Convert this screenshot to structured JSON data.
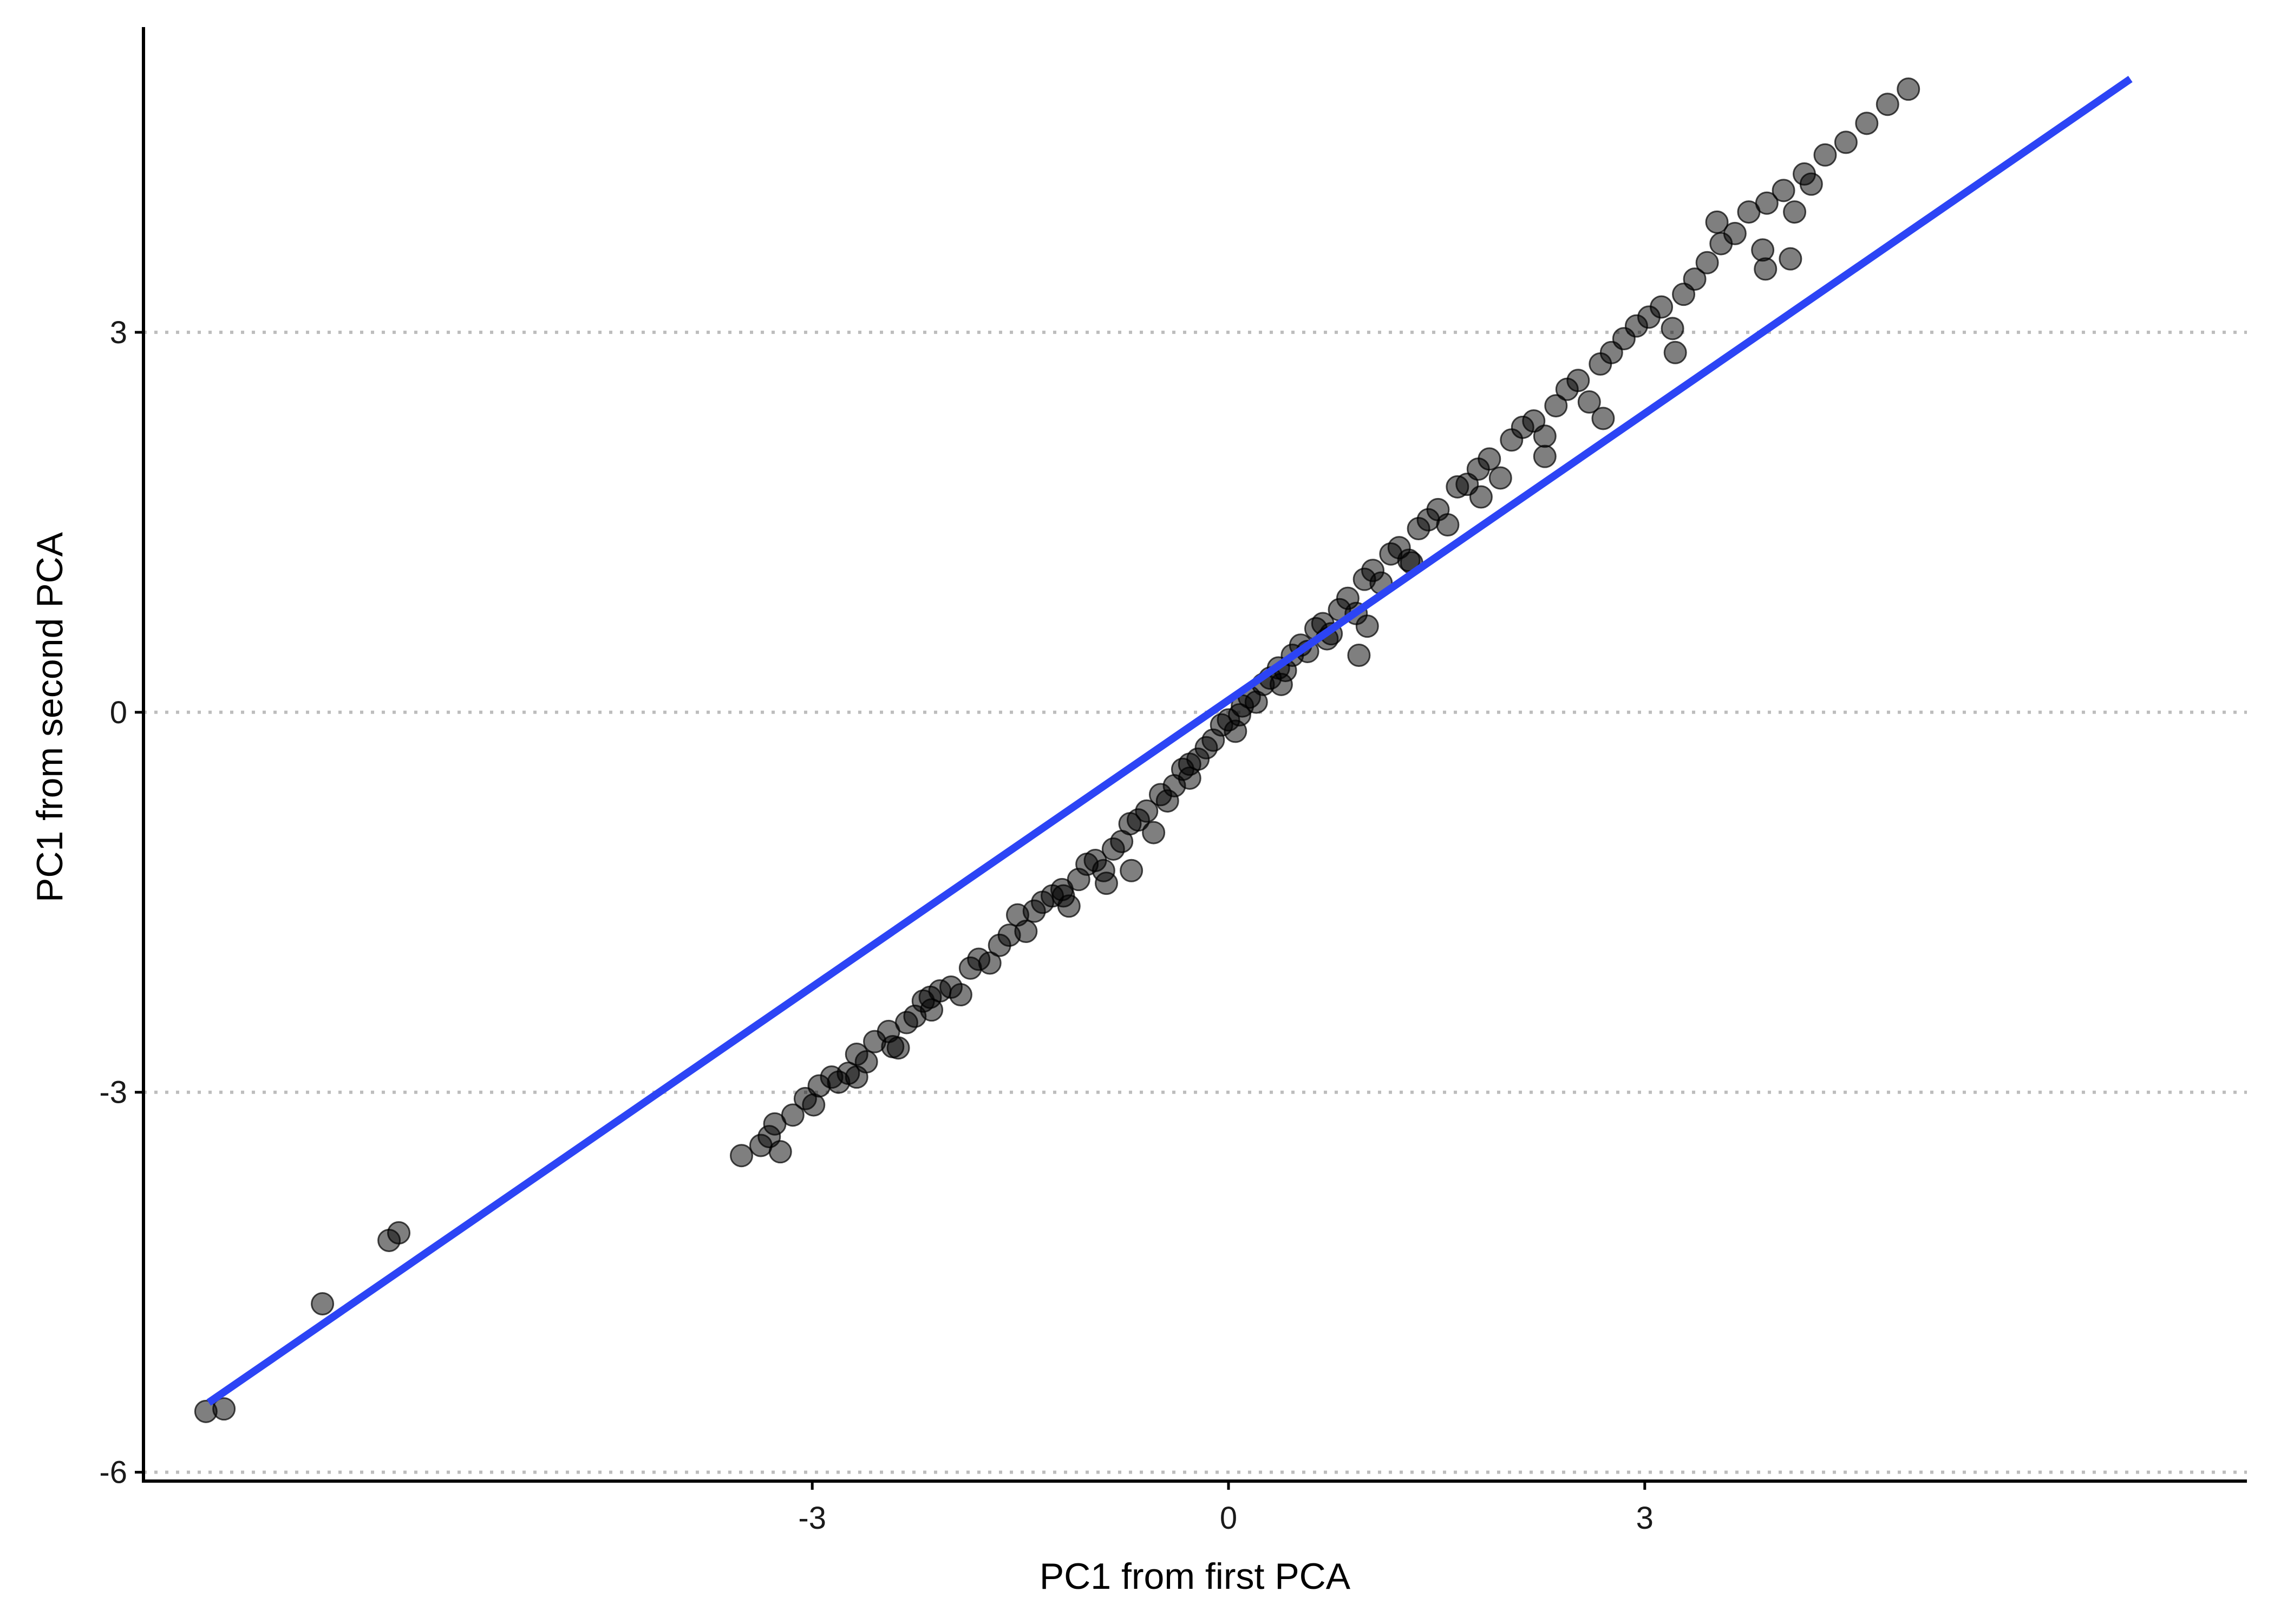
{
  "chart_data": {
    "type": "scatter",
    "title": "",
    "xlabel": "PC1 from first PCA",
    "ylabel": "PC1 from second PCA",
    "xlim": [
      -7.82,
      7.34
    ],
    "ylim": [
      -6.07,
      5.41
    ],
    "x_ticks": [
      {
        "value": -3,
        "label": "-3"
      },
      {
        "value": 0,
        "label": "0"
      },
      {
        "value": 3,
        "label": "3"
      }
    ],
    "y_ticks": [
      {
        "value": -6,
        "label": "-6"
      },
      {
        "value": -3,
        "label": "-3"
      },
      {
        "value": 0,
        "label": "0"
      },
      {
        "value": 3,
        "label": "3"
      }
    ],
    "grid": {
      "horizontal": true,
      "vertical": false,
      "style": "dotted",
      "color": "#bdbdbd"
    },
    "point_color": "#000000",
    "point_opacity": 0.5,
    "fit_line": {
      "color": "#2c44f5",
      "x": [
        -7.35,
        6.5
      ],
      "y": [
        -5.45,
        5.0
      ]
    },
    "points": [
      [
        -7.37,
        -5.52
      ],
      [
        -7.24,
        -5.5
      ],
      [
        -6.53,
        -4.67
      ],
      [
        -6.05,
        -4.17
      ],
      [
        -5.98,
        -4.11
      ],
      [
        -3.51,
        -3.5
      ],
      [
        -3.37,
        -3.42
      ],
      [
        -3.31,
        -3.35
      ],
      [
        -3.27,
        -3.25
      ],
      [
        -3.23,
        -3.47
      ],
      [
        -3.14,
        -3.18
      ],
      [
        -3.05,
        -3.05
      ],
      [
        -2.99,
        -3.1
      ],
      [
        -2.95,
        -2.95
      ],
      [
        -2.86,
        -2.88
      ],
      [
        -2.81,
        -2.92
      ],
      [
        -2.74,
        -2.85
      ],
      [
        -2.68,
        -2.7
      ],
      [
        -2.61,
        -2.76
      ],
      [
        -2.55,
        -2.6
      ],
      [
        -2.45,
        -2.52
      ],
      [
        -2.38,
        -2.65
      ],
      [
        -2.32,
        -2.45
      ],
      [
        -2.26,
        -2.4
      ],
      [
        -2.2,
        -2.28
      ],
      [
        -2.14,
        -2.35
      ],
      [
        -2.08,
        -2.2
      ],
      [
        -2.0,
        -2.17
      ],
      [
        -1.93,
        -2.23
      ],
      [
        -1.86,
        -2.02
      ],
      [
        -1.8,
        -1.95
      ],
      [
        -1.72,
        -1.98
      ],
      [
        -1.65,
        -1.84
      ],
      [
        -1.58,
        -1.76
      ],
      [
        -1.52,
        -1.6
      ],
      [
        -1.46,
        -1.73
      ],
      [
        -1.4,
        -1.57
      ],
      [
        -1.34,
        -1.5
      ],
      [
        -1.27,
        -1.45
      ],
      [
        -1.2,
        -1.4
      ],
      [
        -1.15,
        -1.53
      ],
      [
        -1.08,
        -1.32
      ],
      [
        -1.02,
        -1.2
      ],
      [
        -0.96,
        -1.17
      ],
      [
        -0.9,
        -1.25
      ],
      [
        -0.83,
        -1.08
      ],
      [
        -0.77,
        -1.02
      ],
      [
        -0.71,
        -0.88
      ],
      [
        -0.65,
        -0.85
      ],
      [
        -0.59,
        -0.78
      ],
      [
        -0.54,
        -0.95
      ],
      [
        -0.49,
        -0.65
      ],
      [
        -0.44,
        -0.7
      ],
      [
        -0.39,
        -0.58
      ],
      [
        -0.33,
        -0.45
      ],
      [
        -0.28,
        -0.52
      ],
      [
        -0.22,
        -0.37
      ],
      [
        -0.16,
        -0.28
      ],
      [
        -0.11,
        -0.22
      ],
      [
        -0.05,
        -0.1
      ],
      [
        0.0,
        -0.06
      ],
      [
        0.05,
        -0.15
      ],
      [
        0.1,
        0.05
      ],
      [
        0.15,
        0.12
      ],
      [
        0.2,
        0.08
      ],
      [
        0.25,
        0.22
      ],
      [
        0.3,
        0.27
      ],
      [
        0.36,
        0.35
      ],
      [
        0.41,
        0.33
      ],
      [
        0.46,
        0.45
      ],
      [
        0.52,
        0.53
      ],
      [
        0.57,
        0.48
      ],
      [
        0.63,
        0.66
      ],
      [
        0.68,
        0.7
      ],
      [
        0.74,
        0.62
      ],
      [
        0.8,
        0.81
      ],
      [
        0.86,
        0.9
      ],
      [
        0.92,
        0.78
      ],
      [
        0.98,
        1.05
      ],
      [
        1.04,
        1.12
      ],
      [
        1.1,
        1.02
      ],
      [
        1.17,
        1.25
      ],
      [
        1.23,
        1.3
      ],
      [
        1.3,
        1.2
      ],
      [
        1.37,
        1.45
      ],
      [
        1.44,
        1.52
      ],
      [
        1.51,
        1.6
      ],
      [
        1.58,
        1.48
      ],
      [
        1.65,
        1.78
      ],
      [
        1.72,
        1.8
      ],
      [
        1.8,
        1.92
      ],
      [
        1.88,
        2.0
      ],
      [
        1.96,
        1.85
      ],
      [
        2.04,
        2.15
      ],
      [
        2.12,
        2.25
      ],
      [
        2.2,
        2.3
      ],
      [
        2.28,
        2.18
      ],
      [
        2.36,
        2.42
      ],
      [
        2.44,
        2.55
      ],
      [
        2.52,
        2.62
      ],
      [
        2.6,
        2.45
      ],
      [
        2.68,
        2.75
      ],
      [
        2.76,
        2.84
      ],
      [
        2.85,
        2.95
      ],
      [
        2.94,
        3.05
      ],
      [
        3.03,
        3.12
      ],
      [
        3.12,
        3.2
      ],
      [
        3.2,
        3.03
      ],
      [
        3.28,
        3.3
      ],
      [
        3.36,
        3.42
      ],
      [
        3.45,
        3.55
      ],
      [
        3.55,
        3.7
      ],
      [
        3.65,
        3.78
      ],
      [
        3.75,
        3.95
      ],
      [
        3.88,
        4.02
      ],
      [
        4.0,
        4.12
      ],
      [
        4.15,
        4.25
      ],
      [
        4.3,
        4.4
      ],
      [
        4.45,
        4.5
      ],
      [
        4.6,
        4.65
      ],
      [
        4.75,
        4.8
      ],
      [
        4.9,
        4.92
      ],
      [
        -0.28,
        -0.41
      ],
      [
        0.08,
        -0.02
      ],
      [
        0.38,
        0.22
      ],
      [
        0.71,
        0.58
      ],
      [
        1.32,
        1.18
      ],
      [
        1.82,
        1.7
      ],
      [
        2.28,
        2.02
      ],
      [
        2.7,
        2.32
      ],
      [
        3.22,
        2.84
      ],
      [
        3.52,
        3.87
      ],
      [
        3.85,
        3.65
      ],
      [
        3.87,
        3.5
      ],
      [
        4.05,
        3.58
      ],
      [
        4.08,
        3.95
      ],
      [
        4.2,
        4.17
      ],
      [
        1.0,
        0.68
      ],
      [
        0.94,
        0.45
      ],
      [
        -0.7,
        -1.25
      ],
      [
        -0.88,
        -1.35
      ],
      [
        -1.19,
        -1.45
      ],
      [
        -2.15,
        -2.25
      ],
      [
        -2.42,
        -2.64
      ],
      [
        -2.68,
        -2.88
      ]
    ]
  }
}
